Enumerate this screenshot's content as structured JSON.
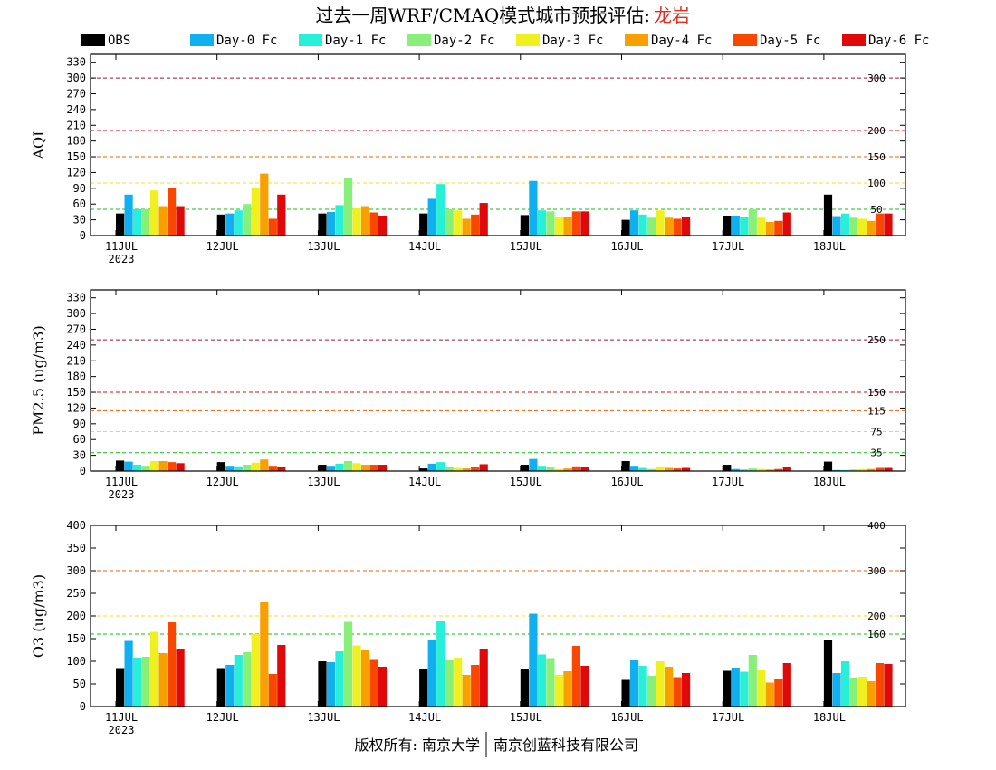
{
  "title": {
    "main": "过去一周WRF/CMAQ模式城市预报评估:",
    "city": "龙岩"
  },
  "footer": {
    "left": "版权所有: 南京大学",
    "right": "南京创蓝科技有限公司"
  },
  "colors": {
    "OBS": "#000000",
    "Day-0 Fc": "#10b0f0",
    "Day-1 Fc": "#28f0d8",
    "Day-2 Fc": "#88f078",
    "Day-3 Fc": "#f0f020",
    "Day-4 Fc": "#f8a000",
    "Day-5 Fc": "#f84800",
    "Day-6 Fc": "#e00808",
    "title_city": "#e03020"
  },
  "chart_data": [
    {
      "type": "bar",
      "ylabel": "AQI",
      "ylim": [
        0,
        345
      ],
      "yticks": [
        0,
        30,
        60,
        90,
        120,
        150,
        180,
        210,
        240,
        270,
        300,
        330
      ],
      "categories": [
        "11JUL",
        "12JUL",
        "13JUL",
        "14JUL",
        "15JUL",
        "16JUL",
        "17JUL",
        "18JUL"
      ],
      "first_category_sublabel": "2023",
      "reference_lines": [
        {
          "value": 300,
          "label": "300",
          "color": "#a01040"
        },
        {
          "value": 200,
          "label": "200",
          "color": "#d01010"
        },
        {
          "value": 150,
          "label": "150",
          "color": "#f06000"
        },
        {
          "value": 100,
          "label": "100",
          "color": "#f0e020"
        },
        {
          "value": 50,
          "label": "50",
          "color": "#10c010"
        }
      ],
      "series": [
        {
          "name": "OBS",
          "values": [
            42,
            40,
            42,
            42,
            39,
            30,
            38,
            78
          ]
        },
        {
          "name": "Day-0 Fc",
          "values": [
            78,
            42,
            45,
            70,
            104,
            48,
            38,
            37
          ]
        },
        {
          "name": "Day-1 Fc",
          "values": [
            50,
            48,
            58,
            98,
            48,
            40,
            36,
            42
          ]
        },
        {
          "name": "Day-2 Fc",
          "values": [
            50,
            60,
            110,
            50,
            46,
            34,
            50,
            34
          ]
        },
        {
          "name": "Day-3 Fc",
          "values": [
            86,
            90,
            52,
            48,
            36,
            48,
            34,
            32
          ]
        },
        {
          "name": "Day-4 Fc",
          "values": [
            56,
            118,
            56,
            32,
            36,
            34,
            26,
            28
          ]
        },
        {
          "name": "Day-5 Fc",
          "values": [
            90,
            32,
            44,
            40,
            46,
            32,
            28,
            42
          ]
        },
        {
          "name": "Day-6 Fc",
          "values": [
            56,
            78,
            38,
            62,
            46,
            36,
            44,
            42
          ]
        }
      ]
    },
    {
      "type": "bar",
      "ylabel": "PM2.5 (ug/m3)",
      "ylim": [
        0,
        345
      ],
      "yticks": [
        0,
        30,
        60,
        90,
        120,
        150,
        180,
        210,
        240,
        270,
        300,
        330
      ],
      "categories": [
        "11JUL",
        "12JUL",
        "13JUL",
        "14JUL",
        "15JUL",
        "16JUL",
        "17JUL",
        "18JUL"
      ],
      "first_category_sublabel": "2023",
      "reference_lines": [
        {
          "value": 250,
          "label": "250",
          "color": "#a01040"
        },
        {
          "value": 150,
          "label": "150",
          "color": "#d01010"
        },
        {
          "value": 115,
          "label": "115",
          "color": "#f06000"
        },
        {
          "value": 75,
          "label": "75",
          "color": "#f0e020"
        },
        {
          "value": 35,
          "label": "35",
          "color": "#10c010"
        }
      ],
      "series": [
        {
          "name": "OBS",
          "values": [
            20,
            17,
            12,
            5,
            12,
            19,
            12,
            18
          ]
        },
        {
          "name": "Day-0 Fc",
          "values": [
            18,
            10,
            10,
            14,
            23,
            10,
            4,
            2
          ]
        },
        {
          "name": "Day-1 Fc",
          "values": [
            12,
            9,
            14,
            17,
            10,
            6,
            3,
            2
          ]
        },
        {
          "name": "Day-2 Fc",
          "values": [
            10,
            12,
            19,
            8,
            7,
            4,
            5,
            3
          ]
        },
        {
          "name": "Day-3 Fc",
          "values": [
            19,
            16,
            15,
            6,
            4,
            9,
            4,
            4
          ]
        },
        {
          "name": "Day-4 Fc",
          "values": [
            19,
            22,
            12,
            5,
            5,
            6,
            3,
            4
          ]
        },
        {
          "name": "Day-5 Fc",
          "values": [
            17,
            10,
            12,
            8,
            9,
            5,
            4,
            6
          ]
        },
        {
          "name": "Day-6 Fc",
          "values": [
            15,
            7,
            12,
            13,
            7,
            6,
            7,
            6
          ]
        }
      ]
    },
    {
      "type": "bar",
      "ylabel": "O3 (ug/m3)",
      "ylim": [
        0,
        400
      ],
      "yticks": [
        0,
        50,
        100,
        150,
        200,
        250,
        300,
        350,
        400
      ],
      "categories": [
        "11JUL",
        "12JUL",
        "13JUL",
        "14JUL",
        "15JUL",
        "16JUL",
        "17JUL",
        "18JUL"
      ],
      "first_category_sublabel": "2023",
      "reference_lines": [
        {
          "value": 400,
          "label": "400",
          "color": "#d01010"
        },
        {
          "value": 300,
          "label": "300",
          "color": "#f06000"
        },
        {
          "value": 200,
          "label": "200",
          "color": "#f0e020"
        },
        {
          "value": 160,
          "label": "160",
          "color": "#10c010"
        }
      ],
      "series": [
        {
          "name": "OBS",
          "values": [
            85,
            85,
            100,
            83,
            82,
            59,
            79,
            146
          ]
        },
        {
          "name": "Day-0 Fc",
          "values": [
            145,
            92,
            98,
            146,
            205,
            102,
            86,
            74
          ]
        },
        {
          "name": "Day-1 Fc",
          "values": [
            108,
            114,
            122,
            190,
            115,
            90,
            77,
            100
          ]
        },
        {
          "name": "Day-2 Fc",
          "values": [
            110,
            120,
            187,
            102,
            107,
            68,
            114,
            64
          ]
        },
        {
          "name": "Day-3 Fc",
          "values": [
            165,
            160,
            135,
            108,
            70,
            100,
            80,
            66
          ]
        },
        {
          "name": "Day-4 Fc",
          "values": [
            118,
            230,
            125,
            70,
            78,
            88,
            53,
            56
          ]
        },
        {
          "name": "Day-5 Fc",
          "values": [
            186,
            72,
            103,
            92,
            134,
            65,
            62,
            96
          ]
        },
        {
          "name": "Day-6 Fc",
          "values": [
            128,
            136,
            88,
            128,
            90,
            74,
            96,
            94
          ]
        }
      ]
    }
  ]
}
